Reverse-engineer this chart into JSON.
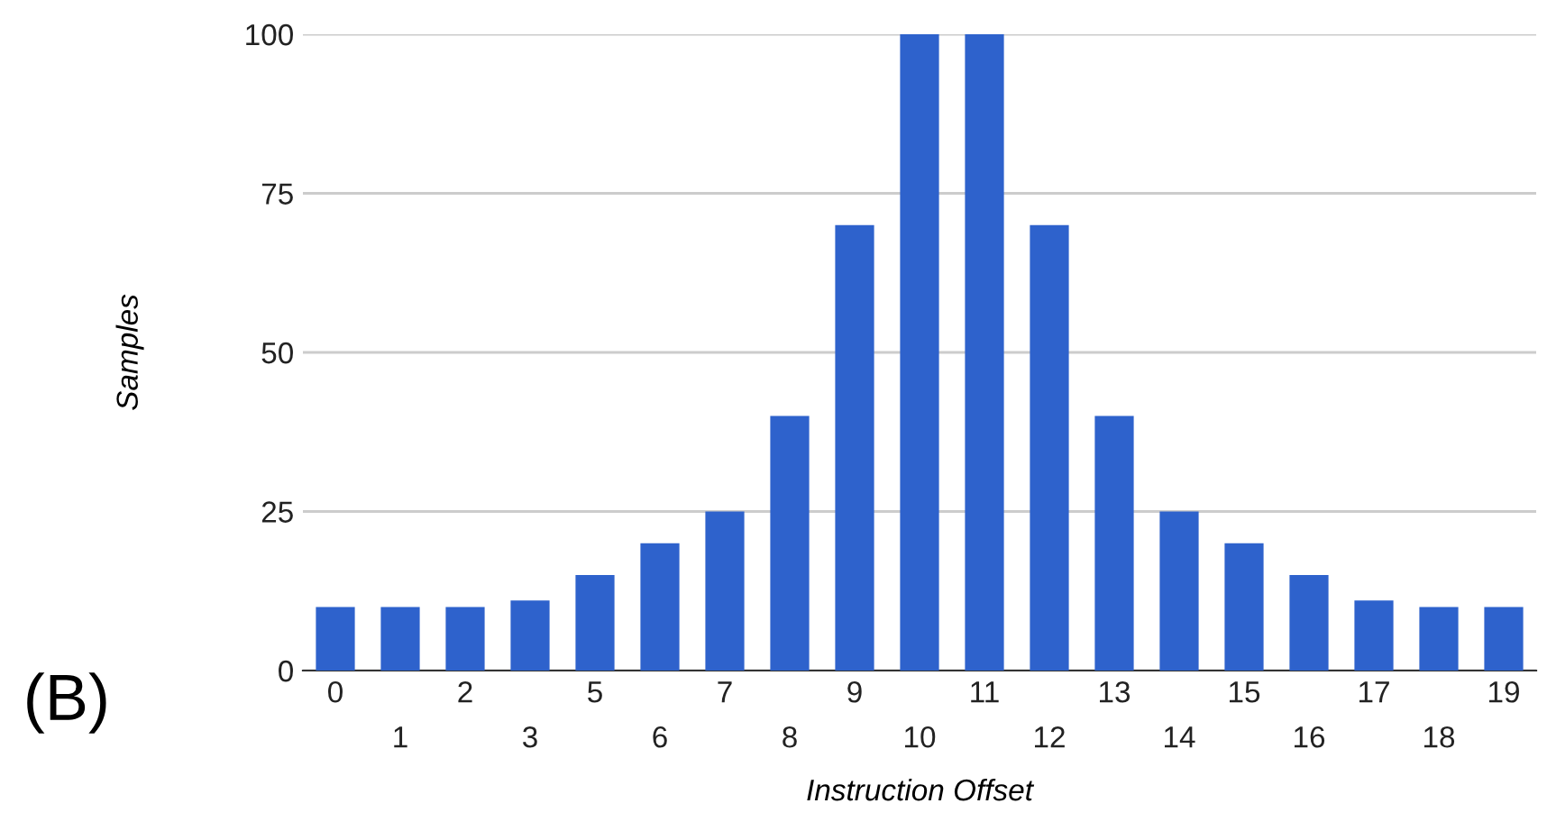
{
  "chart_data": {
    "type": "bar",
    "xlabel": "Instruction Offset",
    "ylabel": "Samples",
    "categories": [
      "0",
      "1",
      "2",
      "3",
      "5",
      "6",
      "7",
      "8",
      "9",
      "10",
      "11",
      "12",
      "13",
      "14",
      "15",
      "16",
      "17",
      "18",
      "19"
    ],
    "values": [
      10,
      10,
      10,
      11,
      15,
      20,
      25,
      40,
      70,
      100,
      100,
      70,
      40,
      25,
      20,
      15,
      11,
      10,
      10
    ],
    "color": "#2e62cc",
    "ylim": [
      0,
      100
    ],
    "yticks": [
      0,
      25,
      50,
      75,
      100
    ],
    "grid": "y",
    "annotations": [
      "(B)"
    ]
  }
}
